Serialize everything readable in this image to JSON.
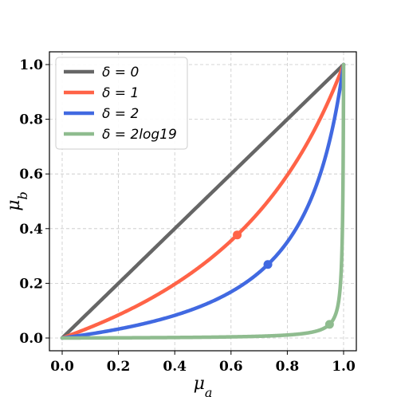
{
  "chart_data": {
    "type": "line",
    "title": "",
    "xlabel": "μ_a",
    "ylabel": "μ_b",
    "xlim": [
      0.0,
      1.0
    ],
    "ylim": [
      0.0,
      1.0
    ],
    "xticks": [
      "0.0",
      "0.2",
      "0.4",
      "0.6",
      "0.8",
      "1.0"
    ],
    "yticks": [
      "0.0",
      "0.2",
      "0.4",
      "0.6",
      "0.8",
      "1.0"
    ],
    "grid": true,
    "legend_position": "top-left",
    "series": [
      {
        "name": "δ = 0",
        "delta": 0,
        "color": "#666666",
        "marker": null
      },
      {
        "name": "δ = 1",
        "delta": 1,
        "color": "#ff6347",
        "marker": {
          "x": 0.622,
          "y": 0.377
        }
      },
      {
        "name": "δ = 2",
        "delta": 2,
        "color": "#4169e1",
        "marker": {
          "x": 0.731,
          "y": 0.269
        }
      },
      {
        "name": "δ = 2log19",
        "delta": 5.889,
        "color": "#8fbc8f",
        "marker": {
          "x": 0.95,
          "y": 0.05
        }
      }
    ]
  }
}
